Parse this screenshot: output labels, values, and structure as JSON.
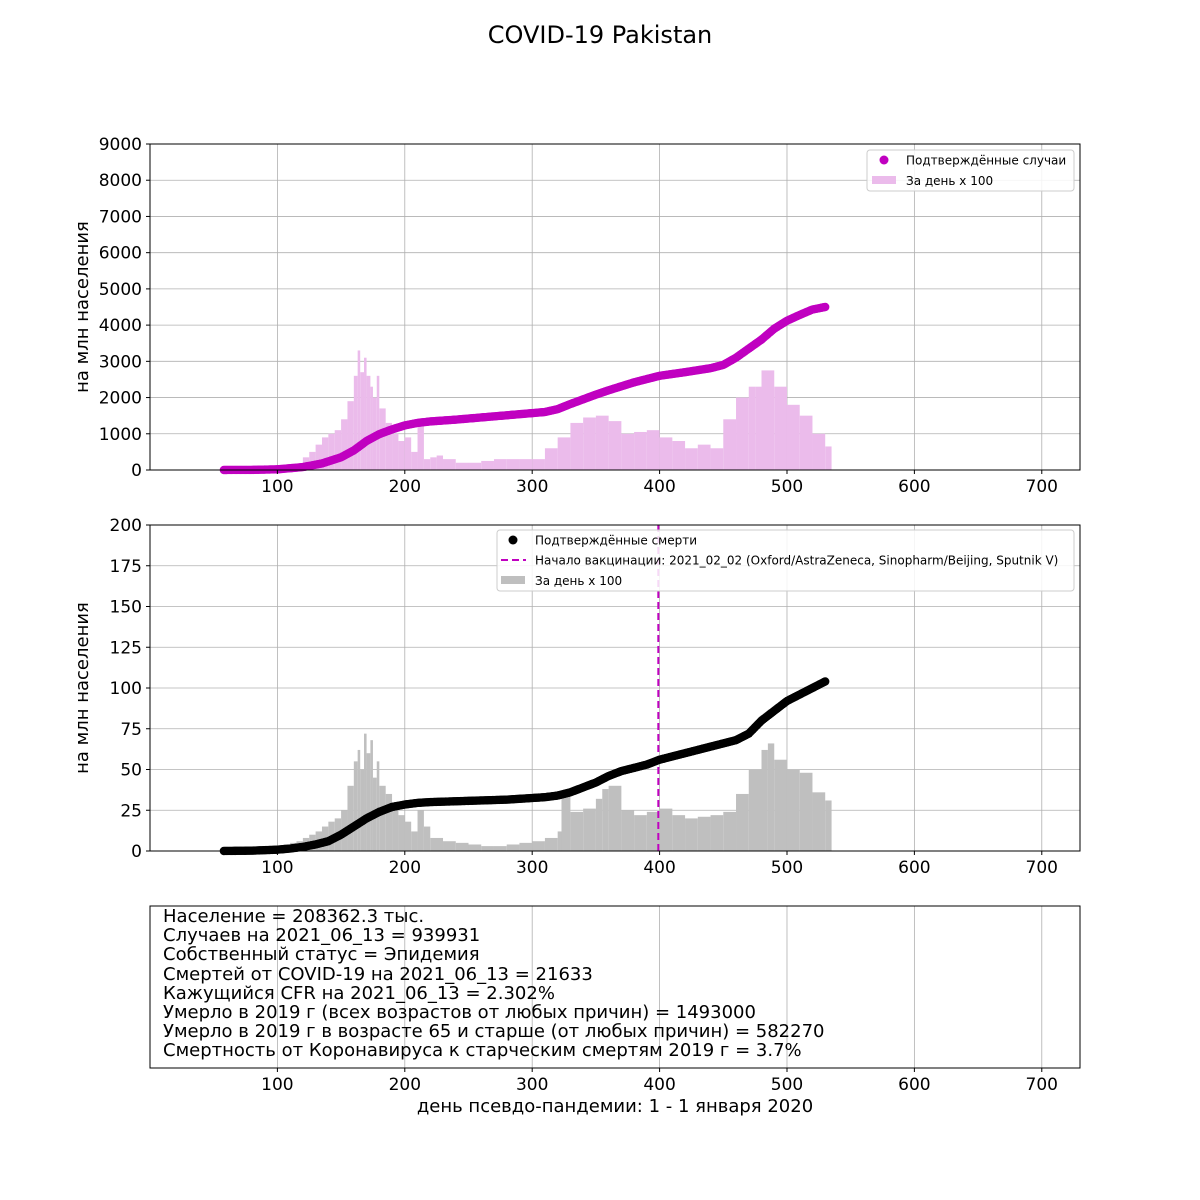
{
  "title": "COVID-19 Pakistan",
  "colors": {
    "cases_cumulative": "#c000c0",
    "cases_daily": "#ebbbeb",
    "deaths_cumulative": "#000000",
    "deaths_daily": "#bfbfbf",
    "vaccination_line": "#c000c0",
    "grid": "#b0b0b0"
  },
  "chart_data": [
    {
      "type": "line",
      "panel": "cases",
      "ylabel": "на млн населения",
      "xlim": [
        0,
        730
      ],
      "ylim": [
        0,
        9000
      ],
      "xticks": [
        100,
        200,
        300,
        400,
        500,
        600,
        700
      ],
      "yticks": [
        0,
        1000,
        2000,
        3000,
        4000,
        5000,
        6000,
        7000,
        8000,
        9000
      ],
      "grid": true,
      "legend_position": "upper right",
      "series": [
        {
          "name": "Подтверждённые случаи",
          "kind": "scatter",
          "x": [
            58,
            80,
            100,
            120,
            135,
            150,
            160,
            170,
            180,
            190,
            200,
            210,
            220,
            240,
            260,
            280,
            300,
            310,
            320,
            330,
            340,
            350,
            360,
            380,
            400,
            420,
            440,
            450,
            460,
            470,
            480,
            490,
            500,
            510,
            520,
            530
          ],
          "y": [
            0,
            3,
            18,
            80,
            180,
            350,
            540,
            800,
            990,
            1120,
            1230,
            1300,
            1340,
            1390,
            1450,
            1510,
            1570,
            1600,
            1680,
            1820,
            1950,
            2080,
            2200,
            2420,
            2600,
            2700,
            2810,
            2900,
            3100,
            3350,
            3600,
            3900,
            4120,
            4280,
            4430,
            4500
          ]
        },
        {
          "name": "За день x 100",
          "kind": "bar",
          "x": [
            100,
            110,
            120,
            125,
            130,
            135,
            140,
            145,
            150,
            155,
            160,
            163,
            165,
            168,
            170,
            173,
            175,
            178,
            180,
            185,
            190,
            195,
            200,
            205,
            210,
            215,
            220,
            225,
            230,
            240,
            250,
            260,
            270,
            280,
            290,
            300,
            310,
            320,
            330,
            340,
            350,
            360,
            370,
            380,
            390,
            400,
            410,
            420,
            430,
            440,
            450,
            460,
            470,
            475,
            480,
            490,
            500,
            510,
            520,
            530
          ],
          "y": [
            80,
            150,
            350,
            500,
            700,
            900,
            1000,
            1100,
            1400,
            1900,
            2600,
            3300,
            2700,
            3100,
            2600,
            2300,
            2000,
            2600,
            1700,
            1300,
            1000,
            800,
            900,
            500,
            1300,
            300,
            350,
            400,
            300,
            200,
            200,
            250,
            300,
            300,
            300,
            300,
            600,
            900,
            1300,
            1450,
            1500,
            1350,
            1000,
            1050,
            1100,
            900,
            800,
            600,
            700,
            600,
            1400,
            2000,
            2300,
            2300,
            2750,
            2300,
            1800,
            1500,
            1000,
            650
          ]
        }
      ]
    },
    {
      "type": "line",
      "panel": "deaths",
      "ylabel": "на млн населения",
      "xlim": [
        0,
        730
      ],
      "ylim": [
        0,
        200
      ],
      "xticks": [
        100,
        200,
        300,
        400,
        500,
        600,
        700
      ],
      "yticks": [
        0,
        25,
        50,
        75,
        100,
        125,
        150,
        175,
        200
      ],
      "grid": true,
      "legend_position": "upper right",
      "series": [
        {
          "name": "Подтверждённые смерти",
          "kind": "scatter",
          "x": [
            58,
            80,
            100,
            110,
            120,
            130,
            140,
            150,
            160,
            170,
            180,
            190,
            200,
            210,
            220,
            240,
            260,
            280,
            300,
            310,
            320,
            330,
            340,
            350,
            360,
            370,
            380,
            390,
            400,
            420,
            440,
            460,
            470,
            480,
            490,
            500,
            510,
            520,
            530
          ],
          "y": [
            0,
            0.2,
            0.8,
            1.5,
            2.5,
            4,
            6,
            10,
            15,
            20,
            24,
            27,
            28.5,
            29.5,
            30,
            30.5,
            31,
            31.5,
            32.5,
            33,
            34,
            36,
            39,
            42,
            46,
            49,
            51,
            53,
            56,
            60,
            64,
            68,
            72,
            80,
            86,
            92,
            96,
            100,
            104
          ]
        },
        {
          "name": "Начало вакцинации: 2021_02_02 (Oxford/AstraZeneca, Sinopharm/Beijing, Sputnik V)",
          "kind": "vline",
          "x": 399
        },
        {
          "name": "За день x 100",
          "kind": "bar",
          "x": [
            100,
            105,
            110,
            115,
            120,
            125,
            130,
            135,
            140,
            145,
            150,
            155,
            160,
            163,
            165,
            168,
            170,
            173,
            175,
            178,
            180,
            185,
            190,
            195,
            200,
            205,
            210,
            215,
            220,
            230,
            240,
            250,
            260,
            270,
            280,
            290,
            300,
            310,
            320,
            323,
            330,
            340,
            350,
            355,
            360,
            370,
            380,
            390,
            400,
            410,
            420,
            430,
            440,
            450,
            460,
            470,
            480,
            485,
            490,
            500,
            510,
            520,
            530
          ],
          "y": [
            3,
            4,
            5,
            6,
            8,
            10,
            12,
            15,
            18,
            20,
            25,
            40,
            55,
            62,
            50,
            72,
            60,
            68,
            45,
            55,
            40,
            35,
            28,
            22,
            18,
            12,
            25,
            15,
            8,
            6,
            5,
            4,
            3,
            3,
            4,
            5,
            6,
            8,
            12,
            35,
            24,
            26,
            32,
            38,
            40,
            25,
            22,
            24,
            26,
            22,
            20,
            21,
            22,
            24,
            35,
            50,
            62,
            66,
            56,
            50,
            48,
            36,
            31
          ]
        }
      ]
    }
  ],
  "bottom_panel": {
    "xticks": [
      100,
      200,
      300,
      400,
      500,
      600,
      700
    ],
    "xlabel": "день псевдо-пандемии: 1 - 1 января 2020",
    "lines": [
      "Население = 208362.3 тыс.",
      "Случаев на 2021_06_13 = 939931",
      "Собственный статус = Эпидемия",
      "Смертей от COVID-19 на 2021_06_13 = 21633",
      "Кажущийся CFR на 2021_06_13 = 2.302%",
      "Умерло в 2019 г (всех возрастов от любых причин) = 1493000",
      "Умерло в 2019 г в возрасте 65 и старше (от любых причин) = 582270",
      "Смертность от Коронавируса к старческим смертям 2019 г = 3.7%"
    ]
  }
}
